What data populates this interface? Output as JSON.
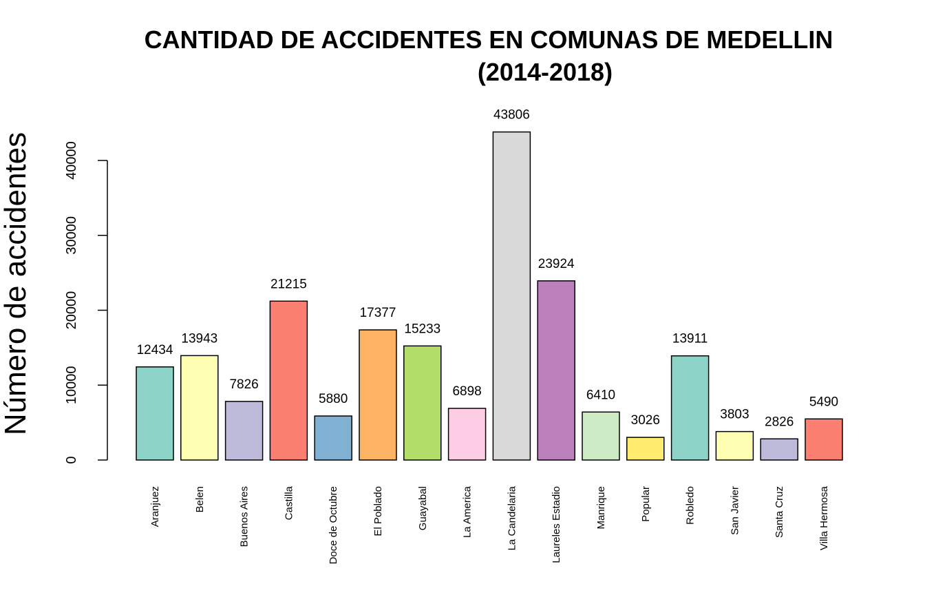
{
  "chart_data": {
    "type": "bar",
    "title": "CANTIDAD DE ACCIDENTES EN COMUNAS DE  MEDELLIN",
    "subtitle": "(2014-2018)",
    "xlabel": "",
    "ylabel": "Número de accidentes",
    "ylim": [
      0,
      45000
    ],
    "yticks": [
      0,
      10000,
      20000,
      30000,
      40000
    ],
    "grid": false,
    "categories": [
      "Aranjuez",
      "Belen",
      "Buenos Aires",
      "Castilla",
      "Doce de Octubre",
      "El Poblado",
      "Guayabal",
      "La America",
      "La Candelaria",
      "Laureles Estadio",
      "Manrique",
      "Popular",
      "Robledo",
      "San Javier",
      "Santa Cruz",
      "Villa Hermosa"
    ],
    "values": [
      12434,
      13943,
      7826,
      21215,
      5880,
      17377,
      15233,
      6898,
      43806,
      23924,
      6410,
      3026,
      13911,
      3803,
      2826,
      5490
    ],
    "colors": [
      "#8DD3C7",
      "#FFFFB3",
      "#BEBADA",
      "#FB8072",
      "#80B1D3",
      "#FDB462",
      "#B3DE69",
      "#FCCDE5",
      "#D9D9D9",
      "#BC80BD",
      "#CCEBC5",
      "#FFED6F",
      "#8DD3C7",
      "#FFFFB3",
      "#BEBADA",
      "#FB8072"
    ]
  }
}
